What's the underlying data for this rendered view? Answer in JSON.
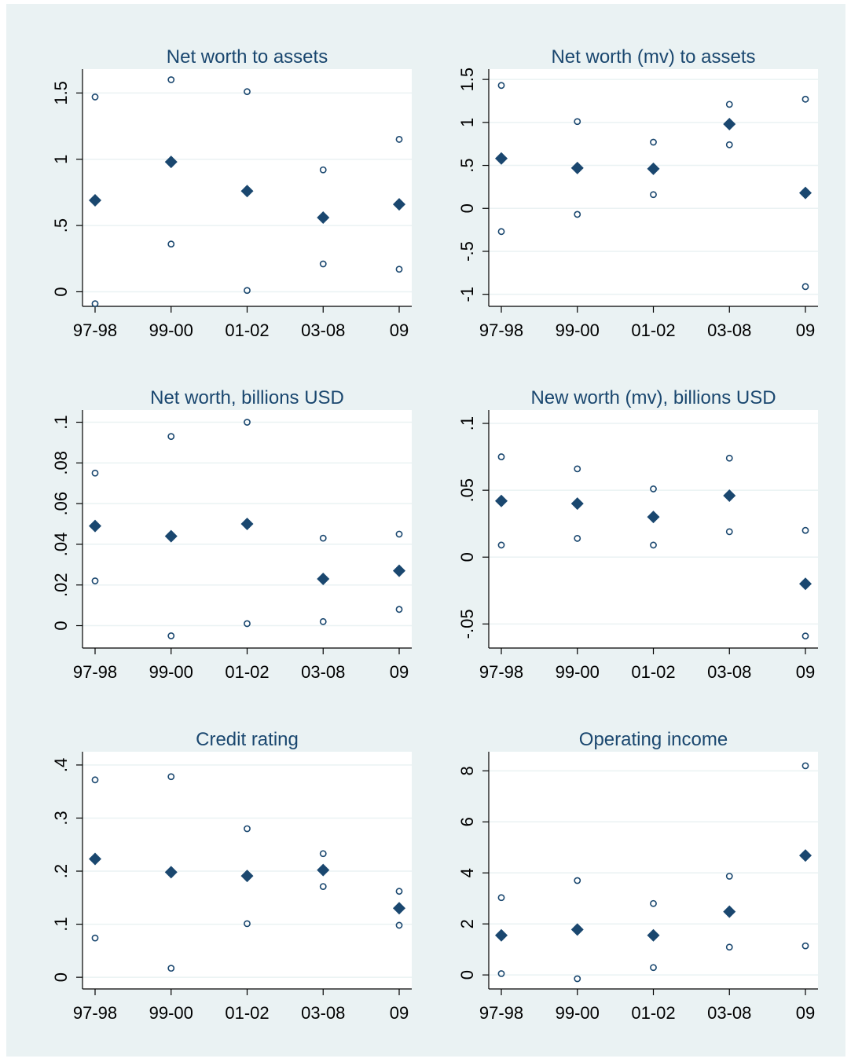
{
  "chart_data": [
    {
      "type": "scatter",
      "title": "Net worth to assets",
      "categories": [
        "97-98",
        "99-00",
        "01-02",
        "03-08",
        "09"
      ],
      "yticks": [
        0,
        0.5,
        1,
        1.5
      ],
      "ytick_labels": [
        "0",
        ".5",
        "1",
        "1.5"
      ],
      "ylim": [
        -0.11,
        1.68
      ],
      "point": [
        0.69,
        0.98,
        0.76,
        0.56,
        0.66
      ],
      "upper": [
        1.47,
        1.6,
        1.51,
        0.92,
        1.15
      ],
      "lower": [
        -0.09,
        0.36,
        0.01,
        0.21,
        0.17
      ],
      "grid": true
    },
    {
      "type": "scatter",
      "title": "Net worth (mv) to assets",
      "categories": [
        "97-98",
        "99-00",
        "01-02",
        "03-08",
        "09"
      ],
      "yticks": [
        -1,
        -0.5,
        0,
        0.5,
        1,
        1.5
      ],
      "ytick_labels": [
        "-1",
        "-.5",
        "0",
        ".5",
        "1",
        "1.5"
      ],
      "ylim": [
        -1.14,
        1.62
      ],
      "point": [
        0.58,
        0.47,
        0.46,
        0.98,
        0.18
      ],
      "upper": [
        1.43,
        1.01,
        0.77,
        1.21,
        1.27
      ],
      "lower": [
        -0.27,
        -0.07,
        0.16,
        0.74,
        -0.91
      ],
      "grid": true
    },
    {
      "type": "scatter",
      "title": "Net worth, billions USD",
      "categories": [
        "97-98",
        "99-00",
        "01-02",
        "03-08",
        "09"
      ],
      "yticks": [
        0,
        0.02,
        0.04,
        0.06,
        0.08,
        0.1
      ],
      "ytick_labels": [
        "0",
        ".02",
        ".04",
        ".06",
        ".08",
        ".1"
      ],
      "ylim": [
        -0.011,
        0.106
      ],
      "point": [
        0.049,
        0.044,
        0.05,
        0.023,
        0.027
      ],
      "upper": [
        0.075,
        0.093,
        0.1,
        0.043,
        0.045
      ],
      "lower": [
        0.022,
        -0.005,
        0.001,
        0.002,
        0.008
      ],
      "grid": true
    },
    {
      "type": "scatter",
      "title": "New worth (mv), billions USD",
      "categories": [
        "97-98",
        "99-00",
        "01-02",
        "03-08",
        "09"
      ],
      "yticks": [
        -0.05,
        0,
        0.05,
        0.1
      ],
      "ytick_labels": [
        "-.05",
        "0",
        ".05",
        ".1"
      ],
      "ylim": [
        -0.068,
        0.11
      ],
      "point": [
        0.042,
        0.04,
        0.03,
        0.046,
        -0.02
      ],
      "upper": [
        0.075,
        0.066,
        0.051,
        0.074,
        0.02
      ],
      "lower": [
        0.009,
        0.014,
        0.009,
        0.019,
        -0.059
      ],
      "grid": true
    },
    {
      "type": "scatter",
      "title": "Credit rating",
      "categories": [
        "97-98",
        "99-00",
        "01-02",
        "03-08",
        "09"
      ],
      "yticks": [
        0,
        0.1,
        0.2,
        0.3,
        0.4
      ],
      "ytick_labels": [
        "0",
        ".1",
        ".2",
        ".3",
        ".4"
      ],
      "ylim": [
        -0.022,
        0.425
      ],
      "point": [
        0.223,
        0.198,
        0.191,
        0.202,
        0.13
      ],
      "upper": [
        0.372,
        0.378,
        0.28,
        0.233,
        0.162
      ],
      "lower": [
        0.074,
        0.017,
        0.101,
        0.171,
        0.098
      ],
      "grid": true
    },
    {
      "type": "scatter",
      "title": "Operating income",
      "categories": [
        "97-98",
        "99-00",
        "01-02",
        "03-08",
        "09"
      ],
      "yticks": [
        0,
        2,
        4,
        6,
        8
      ],
      "ytick_labels": [
        "0",
        "2",
        "4",
        "6",
        "8"
      ],
      "ylim": [
        -0.55,
        8.75
      ],
      "point": [
        1.55,
        1.78,
        1.55,
        2.48,
        4.68
      ],
      "upper": [
        3.03,
        3.7,
        2.8,
        3.87,
        8.2
      ],
      "lower": [
        0.05,
        -0.15,
        0.29,
        1.09,
        1.14
      ],
      "grid": true
    }
  ],
  "colors": {
    "background": "#eaf2f3",
    "plot_background": "#ffffff",
    "grid": "#eaf2f3",
    "marker": "#1a476f",
    "axis": "#000000",
    "title": "#1a476f"
  }
}
